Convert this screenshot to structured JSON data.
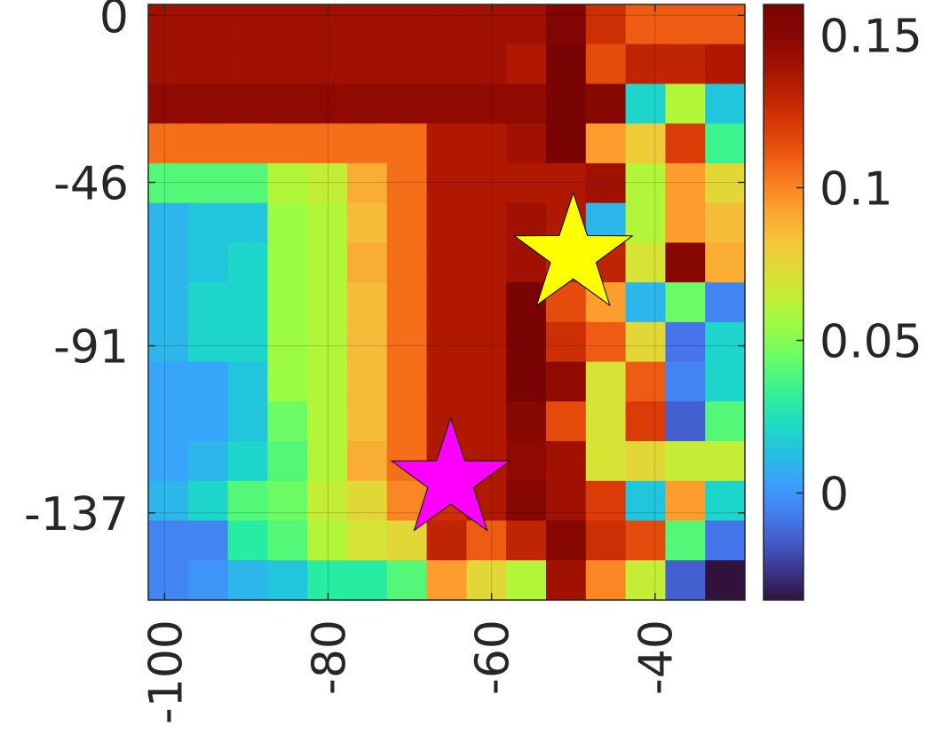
{
  "chart_data": {
    "type": "heatmap",
    "title": "",
    "xlabel": "",
    "ylabel": "",
    "xlim": [
      -102,
      -29
    ],
    "ylim": [
      -161,
      3
    ],
    "x_ticks": [
      {
        "value": -100,
        "label": "-100"
      },
      {
        "value": -80,
        "label": "-80"
      },
      {
        "value": -60,
        "label": "-60"
      },
      {
        "value": -40,
        "label": "-40"
      }
    ],
    "y_ticks": [
      {
        "value": 0,
        "label": "0"
      },
      {
        "value": -46,
        "label": "-46"
      },
      {
        "value": -91,
        "label": "-91"
      },
      {
        "value": -137,
        "label": "-137"
      }
    ],
    "colorbar": {
      "colormap": "turbo",
      "min": -0.035,
      "max": 0.16,
      "ticks": [
        {
          "value": 0,
          "label": "0"
        },
        {
          "value": 0.05,
          "label": "0.05"
        },
        {
          "value": 0.1,
          "label": "0.1"
        },
        {
          "value": 0.15,
          "label": "0.15"
        }
      ]
    },
    "grid": true,
    "z": [
      [
        0.14,
        0.14,
        0.14,
        0.14,
        0.14,
        0.14,
        0.14,
        0.14,
        0.14,
        0.14,
        0.155,
        0.125,
        0.11,
        0.11,
        0.11
      ],
      [
        0.14,
        0.14,
        0.14,
        0.14,
        0.14,
        0.14,
        0.14,
        0.14,
        0.14,
        0.135,
        0.16,
        0.115,
        0.13,
        0.13,
        0.135
      ],
      [
        0.145,
        0.145,
        0.145,
        0.145,
        0.145,
        0.145,
        0.145,
        0.145,
        0.145,
        0.145,
        0.16,
        0.15,
        0.02,
        0.06,
        0.015
      ],
      [
        0.105,
        0.105,
        0.105,
        0.105,
        0.105,
        0.105,
        0.105,
        0.135,
        0.135,
        0.14,
        0.16,
        0.095,
        0.08,
        0.12,
        0.035
      ],
      [
        0.04,
        0.04,
        0.04,
        0.06,
        0.065,
        0.09,
        0.105,
        0.135,
        0.135,
        0.135,
        0.135,
        0.14,
        0.06,
        0.095,
        0.075
      ],
      [
        0.01,
        0.015,
        0.015,
        0.055,
        0.06,
        0.085,
        0.105,
        0.135,
        0.135,
        0.14,
        0.135,
        0.01,
        0.06,
        0.095,
        0.085
      ],
      [
        0.01,
        0.015,
        0.02,
        0.055,
        0.06,
        0.09,
        0.105,
        0.135,
        0.135,
        0.14,
        0.13,
        0.13,
        0.07,
        0.15,
        0.09
      ],
      [
        0.01,
        0.02,
        0.02,
        0.055,
        0.06,
        0.085,
        0.105,
        0.135,
        0.135,
        0.16,
        0.115,
        0.095,
        0.01,
        0.045,
        -0.005
      ],
      [
        0.01,
        0.02,
        0.02,
        0.055,
        0.06,
        0.085,
        0.105,
        0.135,
        0.135,
        0.16,
        0.125,
        0.11,
        0.075,
        -0.01,
        0.02
      ],
      [
        0.005,
        0.005,
        0.015,
        0.055,
        0.06,
        0.085,
        0.105,
        0.135,
        0.135,
        0.16,
        0.145,
        0.07,
        0.11,
        -0.005,
        0.02
      ],
      [
        0.005,
        0.005,
        0.015,
        0.045,
        0.06,
        0.085,
        0.105,
        0.135,
        0.135,
        0.15,
        0.115,
        0.07,
        0.12,
        -0.015,
        0.04
      ],
      [
        0.005,
        0.01,
        0.02,
        0.04,
        0.06,
        0.09,
        0.105,
        0.135,
        0.135,
        0.145,
        0.14,
        0.07,
        0.075,
        0.065,
        0.065
      ],
      [
        0.01,
        0.02,
        0.04,
        0.045,
        0.065,
        0.075,
        0.1,
        0.125,
        0.135,
        0.15,
        0.14,
        0.12,
        0.015,
        0.095,
        0.02
      ],
      [
        -0.005,
        -0.005,
        0.03,
        0.04,
        0.06,
        0.07,
        0.075,
        0.13,
        0.11,
        0.13,
        0.15,
        0.125,
        0.115,
        0.04,
        -0.01
      ],
      [
        -0.005,
        0.0,
        0.01,
        0.015,
        0.03,
        0.03,
        0.04,
        0.095,
        0.075,
        0.06,
        0.14,
        0.1,
        0.065,
        -0.015,
        -0.035
      ]
    ],
    "markers": [
      {
        "shape": "star",
        "color": "#ffff00",
        "x": -50,
        "y": -66
      },
      {
        "shape": "star",
        "color": "#ff00ff",
        "x": -65,
        "y": -128
      }
    ]
  }
}
